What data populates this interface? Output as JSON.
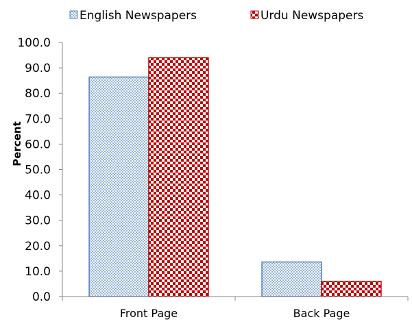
{
  "chart_data": {
    "type": "bar",
    "title": "",
    "xlabel": "",
    "ylabel": "Percent",
    "categories": [
      "Front Page",
      "Back Page"
    ],
    "series": [
      {
        "name": "English Newspapers",
        "values": [
          86.4,
          13.6
        ],
        "color": "#4f81bd",
        "pattern": "dotted"
      },
      {
        "name": "Urdu Newspapers",
        "values": [
          94.0,
          6.0
        ],
        "color": "#c00000",
        "pattern": "checkered"
      }
    ],
    "ylim": [
      0,
      100
    ],
    "yticks": [
      "0.0",
      "10.0",
      "20.0",
      "30.0",
      "40.0",
      "50.0",
      "60.0",
      "70.0",
      "80.0",
      "90.0",
      "100.0"
    ],
    "grid": false,
    "legend": "top"
  }
}
